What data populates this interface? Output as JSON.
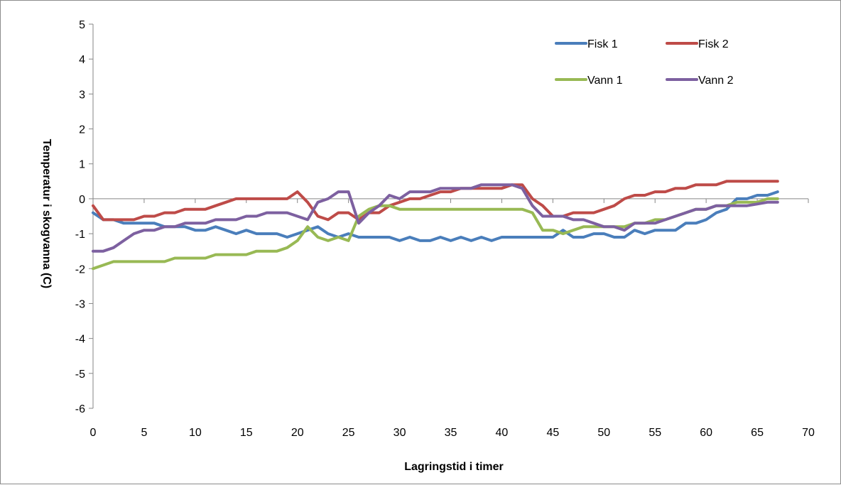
{
  "chart_data": {
    "type": "line",
    "title": "",
    "xlabel": "Lagringstid i timer",
    "ylabel": "Temperatur i skogvanna (C)",
    "xlim": [
      0,
      70
    ],
    "ylim": [
      -6,
      5
    ],
    "xticks": [
      0,
      5,
      10,
      15,
      20,
      25,
      30,
      35,
      40,
      45,
      50,
      55,
      60,
      65,
      70
    ],
    "yticks": [
      -6,
      -5,
      -4,
      -3,
      -2,
      -1,
      0,
      1,
      2,
      3,
      4,
      5
    ],
    "grid": false,
    "legend_position": "top-right",
    "x": [
      0,
      1,
      2,
      3,
      4,
      5,
      6,
      7,
      8,
      9,
      10,
      11,
      12,
      13,
      14,
      15,
      16,
      17,
      18,
      19,
      20,
      21,
      22,
      23,
      24,
      25,
      26,
      27,
      28,
      29,
      30,
      31,
      32,
      33,
      34,
      35,
      36,
      37,
      38,
      39,
      40,
      41,
      42,
      43,
      44,
      45,
      46,
      47,
      48,
      49,
      50,
      51,
      52,
      53,
      54,
      55,
      56,
      57,
      58,
      59,
      60,
      61,
      62,
      63,
      64,
      65,
      66,
      67
    ],
    "series": [
      {
        "name": "Fisk 1",
        "color": "#4a7ebb",
        "values": [
          -0.4,
          -0.6,
          -0.6,
          -0.7,
          -0.7,
          -0.7,
          -0.7,
          -0.8,
          -0.8,
          -0.8,
          -0.9,
          -0.9,
          -0.8,
          -0.9,
          -1.0,
          -0.9,
          -1.0,
          -1.0,
          -1.0,
          -1.1,
          -1.0,
          -0.9,
          -0.8,
          -1.0,
          -1.1,
          -1.0,
          -1.1,
          -1.1,
          -1.1,
          -1.1,
          -1.2,
          -1.1,
          -1.2,
          -1.2,
          -1.1,
          -1.2,
          -1.1,
          -1.2,
          -1.1,
          -1.2,
          -1.1,
          -1.1,
          -1.1,
          -1.1,
          -1.1,
          -1.1,
          -0.9,
          -1.1,
          -1.1,
          -1.0,
          -1.0,
          -1.1,
          -1.1,
          -0.9,
          -1.0,
          -0.9,
          -0.9,
          -0.9,
          -0.7,
          -0.7,
          -0.6,
          -0.4,
          -0.3,
          0.0,
          0.0,
          0.1,
          0.1,
          0.2
        ]
      },
      {
        "name": "Fisk 2",
        "color": "#be4b48",
        "values": [
          -0.2,
          -0.6,
          -0.6,
          -0.6,
          -0.6,
          -0.5,
          -0.5,
          -0.4,
          -0.4,
          -0.3,
          -0.3,
          -0.3,
          -0.2,
          -0.1,
          0.0,
          0.0,
          0.0,
          0.0,
          0.0,
          0.0,
          0.2,
          -0.1,
          -0.5,
          -0.6,
          -0.4,
          -0.4,
          -0.6,
          -0.4,
          -0.4,
          -0.2,
          -0.1,
          0.0,
          0.0,
          0.1,
          0.2,
          0.2,
          0.3,
          0.3,
          0.3,
          0.3,
          0.3,
          0.4,
          0.4,
          0.0,
          -0.2,
          -0.5,
          -0.5,
          -0.4,
          -0.4,
          -0.4,
          -0.3,
          -0.2,
          0.0,
          0.1,
          0.1,
          0.2,
          0.2,
          0.3,
          0.3,
          0.4,
          0.4,
          0.4,
          0.5,
          0.5,
          0.5,
          0.5,
          0.5,
          0.5
        ]
      },
      {
        "name": "Vann 1",
        "color": "#98b954",
        "values": [
          -2.0,
          -1.9,
          -1.8,
          -1.8,
          -1.8,
          -1.8,
          -1.8,
          -1.8,
          -1.7,
          -1.7,
          -1.7,
          -1.7,
          -1.6,
          -1.6,
          -1.6,
          -1.6,
          -1.5,
          -1.5,
          -1.5,
          -1.4,
          -1.2,
          -0.8,
          -1.1,
          -1.2,
          -1.1,
          -1.2,
          -0.5,
          -0.3,
          -0.2,
          -0.2,
          -0.3,
          -0.3,
          -0.3,
          -0.3,
          -0.3,
          -0.3,
          -0.3,
          -0.3,
          -0.3,
          -0.3,
          -0.3,
          -0.3,
          -0.3,
          -0.4,
          -0.9,
          -0.9,
          -1.0,
          -0.9,
          -0.8,
          -0.8,
          -0.8,
          -0.8,
          -0.8,
          -0.7,
          -0.7,
          -0.6,
          -0.6,
          -0.5,
          -0.4,
          -0.3,
          -0.3,
          -0.2,
          -0.2,
          -0.1,
          -0.1,
          -0.1,
          0.0,
          0.0
        ]
      },
      {
        "name": "Vann 2",
        "color": "#7d60a0",
        "values": [
          -1.5,
          -1.5,
          -1.4,
          -1.2,
          -1.0,
          -0.9,
          -0.9,
          -0.8,
          -0.8,
          -0.7,
          -0.7,
          -0.7,
          -0.6,
          -0.6,
          -0.6,
          -0.5,
          -0.5,
          -0.4,
          -0.4,
          -0.4,
          -0.5,
          -0.6,
          -0.1,
          0.0,
          0.2,
          0.2,
          -0.7,
          -0.4,
          -0.2,
          0.1,
          0.0,
          0.2,
          0.2,
          0.2,
          0.3,
          0.3,
          0.3,
          0.3,
          0.4,
          0.4,
          0.4,
          0.4,
          0.3,
          -0.2,
          -0.5,
          -0.5,
          -0.5,
          -0.6,
          -0.6,
          -0.7,
          -0.8,
          -0.8,
          -0.9,
          -0.7,
          -0.7,
          -0.7,
          -0.6,
          -0.5,
          -0.4,
          -0.3,
          -0.3,
          -0.2,
          -0.2,
          -0.2,
          -0.2,
          -0.15,
          -0.1,
          -0.1
        ]
      }
    ]
  }
}
